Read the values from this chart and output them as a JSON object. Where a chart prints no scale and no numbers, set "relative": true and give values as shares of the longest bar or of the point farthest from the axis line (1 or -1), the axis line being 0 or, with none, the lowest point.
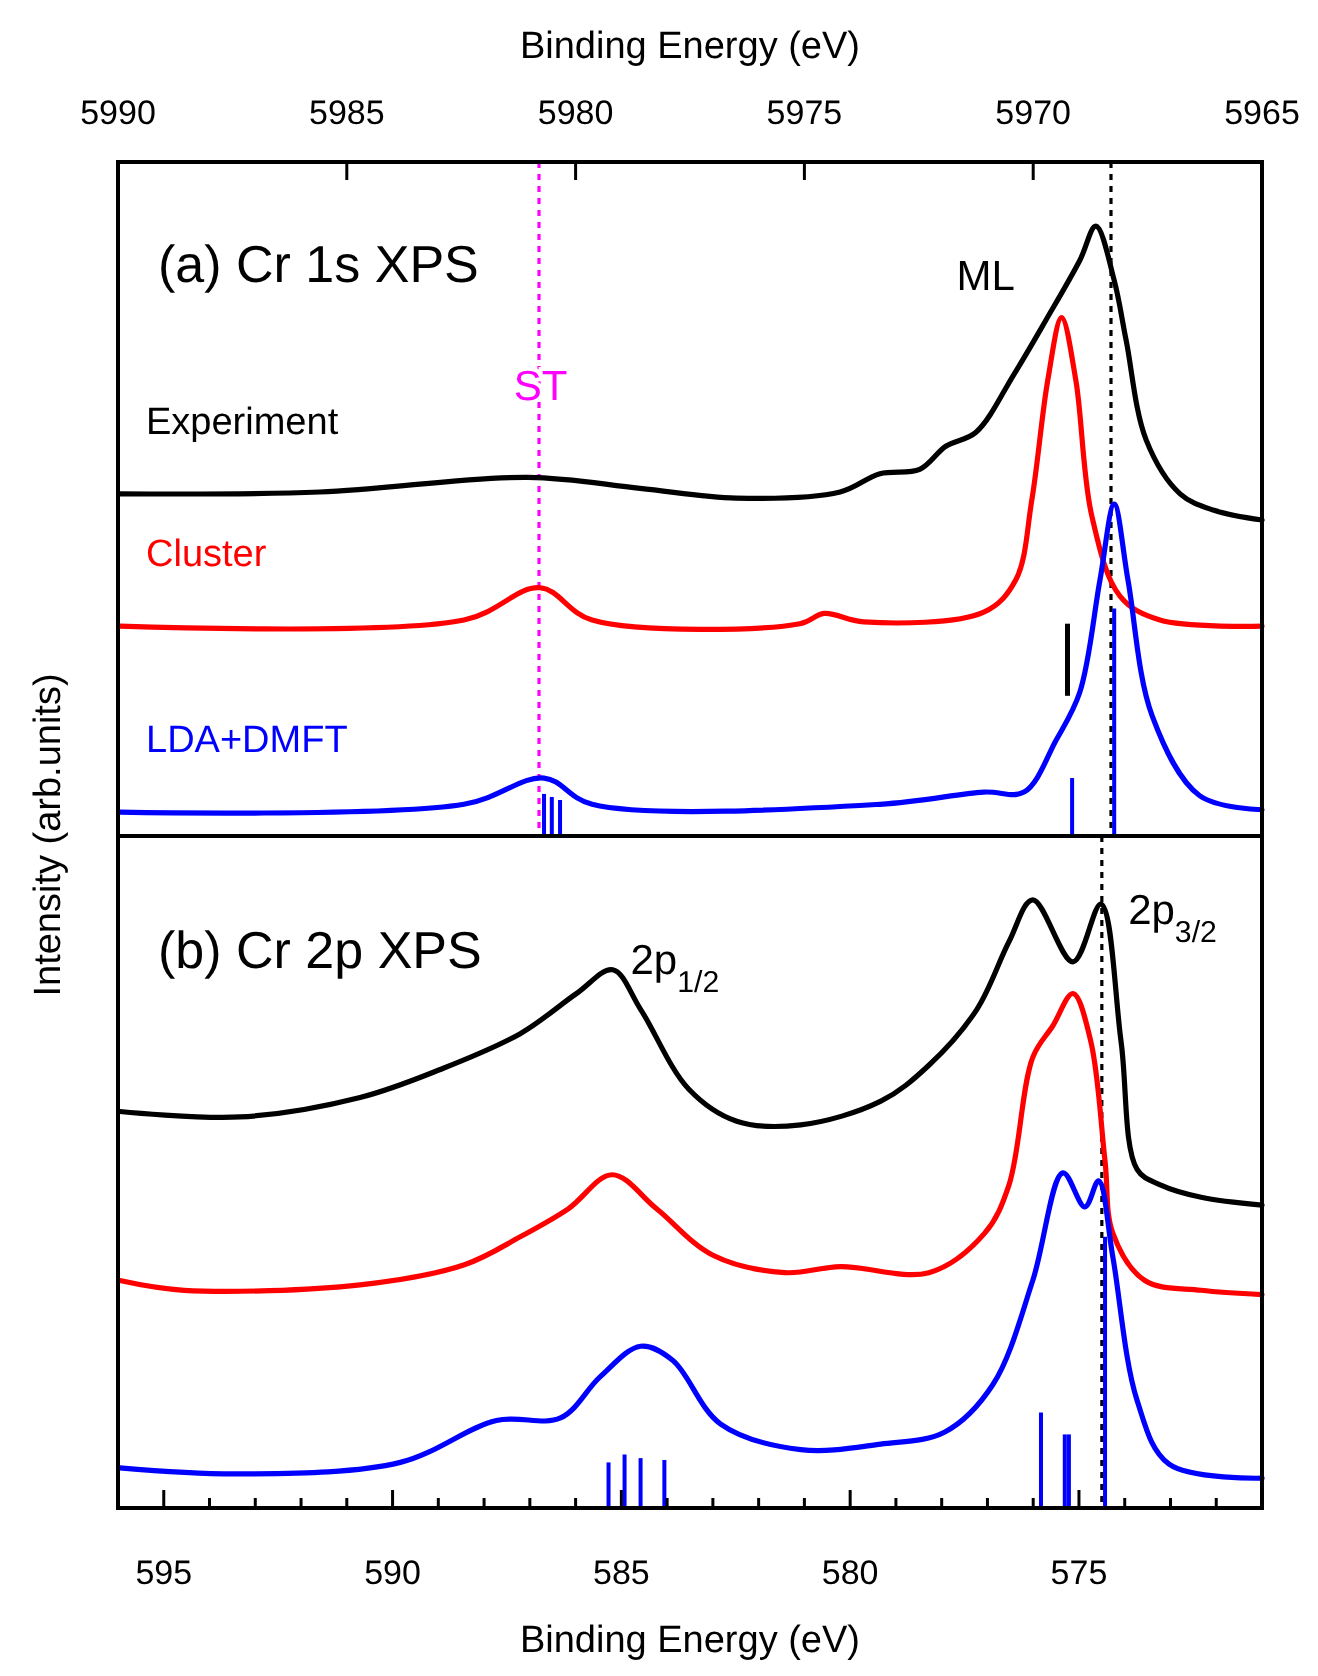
{
  "chart_data": [
    {
      "type": "line",
      "relative": true,
      "xlabel": "Binding Energy (eV)",
      "ylabel": "Intensity (arb.units)",
      "xlim": [
        5990,
        5965
      ],
      "xticks": [
        5990,
        5985,
        5980,
        5975,
        5970,
        5965
      ],
      "series": [
        {
          "name": "Experiment",
          "color": "#000000",
          "x": [
            5989.96,
            5985.59,
            5981.04,
            5978.59,
            5976.49,
            5974.22,
            5973.35,
            5972.48,
            5971.91,
            5971.25,
            5970.42,
            5969.72,
            5968.98,
            5968.63,
            5968.23,
            5967.97,
            5967.53,
            5966.79,
            5966.05,
            5965.0
          ],
          "values": [
            0.561,
            0.564,
            0.588,
            0.57,
            0.554,
            0.564,
            0.594,
            0.601,
            0.639,
            0.662,
            0.757,
            0.846,
            0.944,
            1.0,
            0.911,
            0.813,
            0.649,
            0.561,
            0.534,
            0.518
          ]
        },
        {
          "name": "Cluster",
          "color": "#ff0000",
          "x": [
            5989.96,
            5982.44,
            5980.78,
            5979.64,
            5975.1,
            5974.57,
            5973.7,
            5971.08,
            5970.38,
            5970.03,
            5969.68,
            5969.38,
            5969.07,
            5968.72,
            5968.1,
            5967.23,
            5965.0
          ],
          "values": [
            0.344,
            0.354,
            0.407,
            0.354,
            0.348,
            0.365,
            0.351,
            0.367,
            0.42,
            0.551,
            0.748,
            0.85,
            0.748,
            0.525,
            0.393,
            0.354,
            0.344
          ]
        },
        {
          "name": "LDA+DMFT",
          "color": "#0000ff",
          "x": [
            5989.96,
            5982.44,
            5980.69,
            5979.64,
            5973.35,
            5971.08,
            5970.2,
            5969.5,
            5968.98,
            5968.54,
            5968.23,
            5967.93,
            5967.4,
            5966.36,
            5965.0
          ],
          "values": [
            0.039,
            0.052,
            0.095,
            0.052,
            0.052,
            0.072,
            0.072,
            0.157,
            0.236,
            0.42,
            0.544,
            0.42,
            0.197,
            0.066,
            0.043
          ]
        },
        {
          "type": "bar",
          "color": "#0000ff",
          "x": [
            5980.69,
            5980.52,
            5980.34,
            5969.15,
            5968.23
          ],
          "values": [
            0.069,
            0.064,
            0.059,
            0.095,
            0.373
          ]
        }
      ],
      "ref_lines": [
        {
          "axis": "x",
          "value": 5980.8,
          "color": "#ff00ff",
          "line_style": "dotted"
        },
        {
          "axis": "x",
          "value": 5968.3,
          "color": "#000000",
          "line_style": "dotted"
        }
      ],
      "annotations": [
        "(a) Cr 1s XPS",
        "ST",
        "ML"
      ]
    },
    {
      "type": "line",
      "relative": true,
      "xlabel": "Binding Energy (eV)",
      "xlim": [
        596,
        571
      ],
      "xticks": [
        {
          "value": 596,
          "label": null
        },
        595,
        {
          "value": 594,
          "label": null
        },
        {
          "value": 593,
          "label": null
        },
        {
          "value": 592,
          "label": null
        },
        {
          "value": 591,
          "label": null
        },
        590,
        {
          "value": 589,
          "label": null
        },
        {
          "value": 588,
          "label": null
        },
        {
          "value": 587,
          "label": null
        },
        {
          "value": 586,
          "label": null
        },
        585,
        {
          "value": 584,
          "label": null
        },
        {
          "value": 583,
          "label": null
        },
        {
          "value": 582,
          "label": null
        },
        {
          "value": 581,
          "label": null
        },
        580,
        {
          "value": 579,
          "label": null
        },
        {
          "value": 578,
          "label": null
        },
        {
          "value": 577,
          "label": null
        },
        {
          "value": 576,
          "label": null
        },
        575,
        {
          "value": 574,
          "label": null
        },
        {
          "value": 573,
          "label": null
        },
        {
          "value": 572,
          "label": null
        },
        {
          "value": 571,
          "label": null
        }
      ],
      "series": [
        {
          "color": "#000000",
          "x": [
            595.96,
            593.33,
            590.71,
            588.96,
            587.21,
            585.98,
            585.19,
            584.58,
            583.53,
            582.48,
            581.08,
            579.33,
            578.28,
            577.23,
            576.53,
            576.01,
            575.13,
            574.52,
            574.08,
            573.73,
            573.21,
            572.33,
            571.0
          ],
          "values": [
            0.652,
            0.643,
            0.675,
            0.721,
            0.78,
            0.846,
            0.885,
            0.82,
            0.689,
            0.636,
            0.63,
            0.669,
            0.728,
            0.82,
            0.931,
            1.0,
            0.898,
            0.993,
            0.767,
            0.557,
            0.531,
            0.511,
            0.498
          ]
        },
        {
          "color": "#ff0000",
          "x": [
            595.96,
            594.56,
            590.71,
            588.43,
            587.21,
            586.16,
            585.2,
            584.23,
            583.01,
            581.43,
            580.21,
            578.28,
            577.06,
            576.53,
            576.01,
            575.57,
            575.13,
            574.74,
            574.43,
            574.26,
            573.56,
            572.33,
            571.0
          ],
          "values": [
            0.374,
            0.358,
            0.367,
            0.4,
            0.446,
            0.492,
            0.548,
            0.492,
            0.416,
            0.387,
            0.397,
            0.387,
            0.452,
            0.531,
            0.741,
            0.793,
            0.846,
            0.767,
            0.57,
            0.452,
            0.374,
            0.358,
            0.351
          ]
        },
        {
          "color": "#0000ff",
          "x": [
            595.96,
            593.33,
            589.83,
            587.73,
            586.33,
            585.46,
            584.58,
            583.88,
            582.83,
            581.08,
            579.33,
            577.93,
            576.88,
            576.01,
            575.35,
            574.87,
            574.57,
            574.26,
            573.73,
            573.03,
            571.0
          ],
          "values": [
            0.066,
            0.056,
            0.075,
            0.144,
            0.148,
            0.216,
            0.266,
            0.243,
            0.138,
            0.096,
            0.105,
            0.125,
            0.203,
            0.374,
            0.551,
            0.495,
            0.538,
            0.413,
            0.177,
            0.072,
            0.049
          ]
        },
        {
          "type": "bar",
          "color": "#0000ff",
          "x": [
            585.28,
            584.93,
            584.58,
            584.06,
            575.83,
            575.31,
            575.22,
            574.43
          ],
          "values": [
            0.075,
            0.088,
            0.082,
            0.079,
            0.157,
            0.121,
            0.121,
            0.446
          ]
        }
      ],
      "ref_lines": [
        {
          "axis": "x",
          "value": 574.5,
          "color": "#000000",
          "line_style": "dotted"
        }
      ],
      "annotations": [
        "(b) Cr 2p XPS",
        "2p$_{1/2}$",
        "2p$_{3/2}$"
      ]
    }
  ]
}
